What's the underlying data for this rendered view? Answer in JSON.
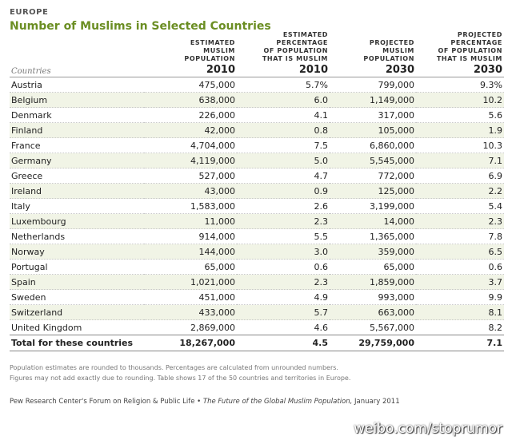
{
  "region_label": "EUROPE",
  "title": "Number of Muslims in Selected Countries",
  "headers": {
    "col1": [
      "ESTIMATED",
      "MUSLIM",
      "POPULATION"
    ],
    "col2": [
      "ESTIMATED",
      "PERCENTAGE",
      "OF POPULATION",
      "THAT IS MUSLIM"
    ],
    "col3": [
      "PROJECTED",
      "MUSLIM",
      "POPULATION"
    ],
    "col4": [
      "PROJECTED",
      "PERCENTAGE",
      "OF POPULATION",
      "THAT IS MUSLIM"
    ]
  },
  "countries_label": "Countries",
  "years": [
    "2010",
    "2010",
    "2030",
    "2030"
  ],
  "rows": [
    {
      "country": "Austria",
      "pop2010": "475,000",
      "pct2010": "5.7%",
      "pop2030": "799,000",
      "pct2030": "9.3%"
    },
    {
      "country": "Belgium",
      "pop2010": "638,000",
      "pct2010": "6.0",
      "pop2030": "1,149,000",
      "pct2030": "10.2"
    },
    {
      "country": "Denmark",
      "pop2010": "226,000",
      "pct2010": "4.1",
      "pop2030": "317,000",
      "pct2030": "5.6"
    },
    {
      "country": "Finland",
      "pop2010": "42,000",
      "pct2010": "0.8",
      "pop2030": "105,000",
      "pct2030": "1.9"
    },
    {
      "country": "France",
      "pop2010": "4,704,000",
      "pct2010": "7.5",
      "pop2030": "6,860,000",
      "pct2030": "10.3"
    },
    {
      "country": "Germany",
      "pop2010": "4,119,000",
      "pct2010": "5.0",
      "pop2030": "5,545,000",
      "pct2030": "7.1"
    },
    {
      "country": "Greece",
      "pop2010": "527,000",
      "pct2010": "4.7",
      "pop2030": "772,000",
      "pct2030": "6.9"
    },
    {
      "country": "Ireland",
      "pop2010": "43,000",
      "pct2010": "0.9",
      "pop2030": "125,000",
      "pct2030": "2.2"
    },
    {
      "country": "Italy",
      "pop2010": "1,583,000",
      "pct2010": "2.6",
      "pop2030": "3,199,000",
      "pct2030": "5.4"
    },
    {
      "country": "Luxembourg",
      "pop2010": "11,000",
      "pct2010": "2.3",
      "pop2030": "14,000",
      "pct2030": "2.3"
    },
    {
      "country": "Netherlands",
      "pop2010": "914,000",
      "pct2010": "5.5",
      "pop2030": "1,365,000",
      "pct2030": "7.8"
    },
    {
      "country": "Norway",
      "pop2010": "144,000",
      "pct2010": "3.0",
      "pop2030": "359,000",
      "pct2030": "6.5"
    },
    {
      "country": "Portugal",
      "pop2010": "65,000",
      "pct2010": "0.6",
      "pop2030": "65,000",
      "pct2030": "0.6"
    },
    {
      "country": "Spain",
      "pop2010": "1,021,000",
      "pct2010": "2.3",
      "pop2030": "1,859,000",
      "pct2030": "3.7"
    },
    {
      "country": "Sweden",
      "pop2010": "451,000",
      "pct2010": "4.9",
      "pop2030": "993,000",
      "pct2030": "9.9"
    },
    {
      "country": "Switzerland",
      "pop2010": "433,000",
      "pct2010": "5.7",
      "pop2030": "663,000",
      "pct2030": "8.1"
    },
    {
      "country": "United Kingdom",
      "pop2010": "2,869,000",
      "pct2010": "4.6",
      "pop2030": "5,567,000",
      "pct2030": "8.2"
    }
  ],
  "total": {
    "label": "Total for these countries",
    "pop2010": "18,267,000",
    "pct2010": "4.5",
    "pop2030": "29,759,000",
    "pct2030": "7.1"
  },
  "notes": [
    "Population estimates are rounded to thousands. Percentages are calculated from unrounded numbers.",
    "Figures may not add exactly due to rounding. Table shows 17 of the 50 countries and territories in Europe."
  ],
  "source": {
    "org": "Pew Research Center's Forum on Religion & Public Life •",
    "book": "The Future of the Global Muslim Population,",
    "date": "January 2011"
  },
  "watermark": "weibo.com/stoprumor"
}
